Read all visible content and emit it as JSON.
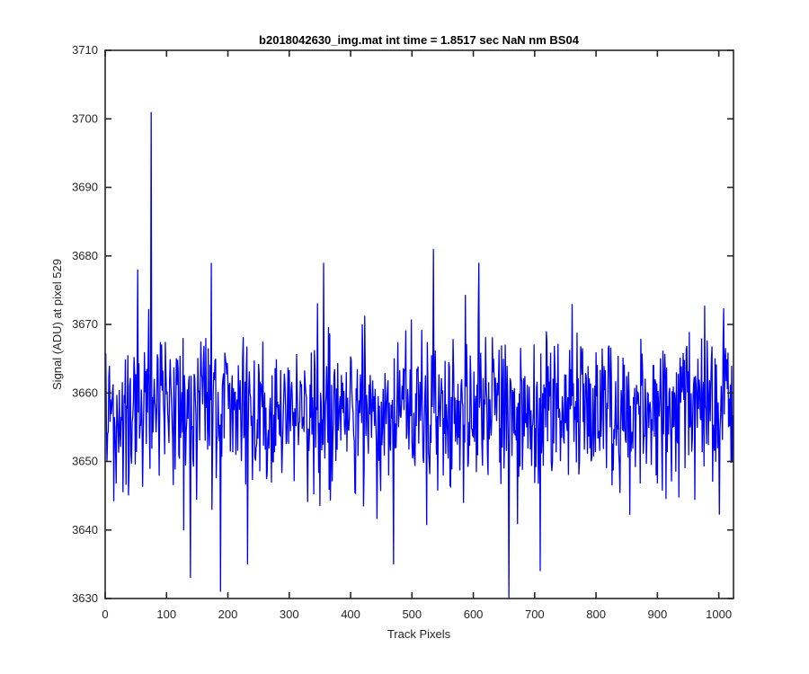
{
  "chart_data": {
    "type": "line",
    "title": "b2018042630_img.mat int time = 1.8517 sec  NaN nm BS04",
    "xlabel": "Track Pixels",
    "ylabel": "Signal (ADU) at pixel 529",
    "xlim": [
      0,
      1024
    ],
    "ylim": [
      3630,
      3710
    ],
    "xticks": [
      0,
      100,
      200,
      300,
      400,
      500,
      600,
      700,
      800,
      900,
      1000
    ],
    "yticks": [
      3630,
      3640,
      3650,
      3660,
      3670,
      3680,
      3690,
      3700,
      3710
    ],
    "grid": false,
    "legend": "none",
    "series": [
      {
        "color": "#0000ff",
        "n_points": 1024,
        "x_start": 1,
        "mean": 3657.5,
        "std": 5.8,
        "extremes": [
          {
            "x": 75,
            "y": 3701
          },
          {
            "x": 139,
            "y": 3633
          },
          {
            "x": 188,
            "y": 3631
          },
          {
            "x": 232,
            "y": 3635
          },
          {
            "x": 470,
            "y": 3635
          },
          {
            "x": 535,
            "y": 3681
          },
          {
            "x": 658,
            "y": 3630
          },
          {
            "x": 709,
            "y": 3634
          },
          {
            "x": 356,
            "y": 3679
          },
          {
            "x": 53,
            "y": 3678
          },
          {
            "x": 173,
            "y": 3679
          },
          {
            "x": 609,
            "y": 3679
          }
        ]
      }
    ]
  }
}
